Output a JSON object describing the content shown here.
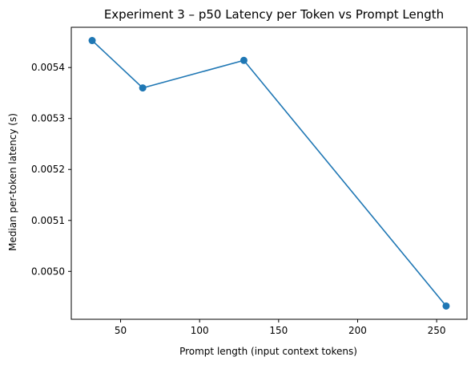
{
  "chart_data": {
    "type": "line",
    "title": "Experiment 3 – p50 Latency per Token vs Prompt Length",
    "xlabel": "Prompt length (input context tokens)",
    "ylabel": "Median per-token latency (s)",
    "x": [
      32,
      64,
      128,
      256
    ],
    "series": [
      {
        "values": [
          0.005453,
          0.00536,
          0.005414,
          0.004932
        ]
      }
    ],
    "xlim": [
      18.8,
      269.2
    ],
    "ylim": [
      0.004906,
      0.005479
    ],
    "xticks": [
      50,
      100,
      150,
      200,
      250
    ],
    "xtick_labels": [
      "50",
      "100",
      "150",
      "200",
      "250"
    ],
    "yticks": [
      0.005,
      0.0051,
      0.0052,
      0.0053,
      0.0054
    ],
    "ytick_labels": [
      "0.0050",
      "0.0051",
      "0.0052",
      "0.0053",
      "0.0054"
    ],
    "grid": false,
    "line_color": "#1f77b4",
    "marker": "circle"
  }
}
